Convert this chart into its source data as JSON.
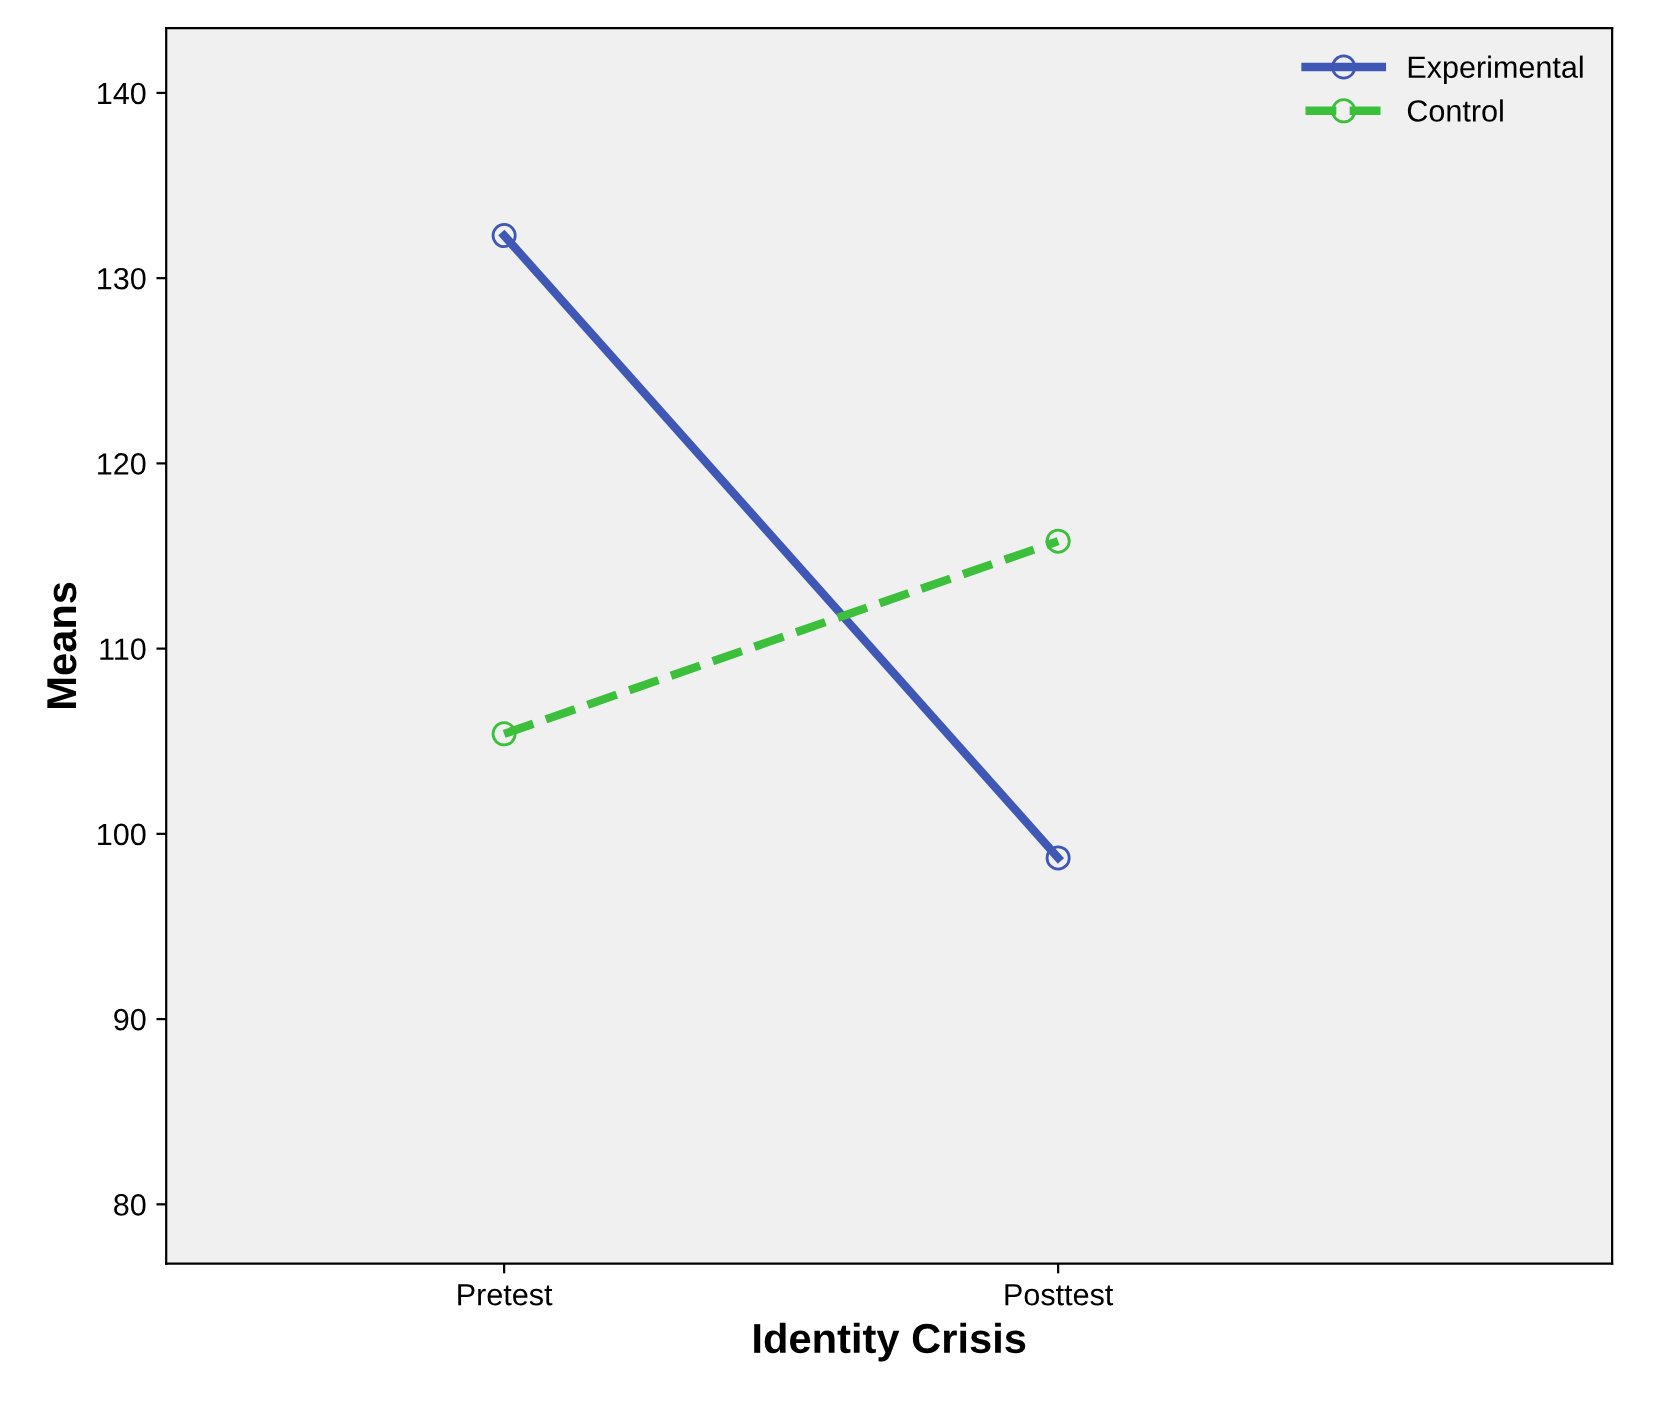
{
  "chart_data": {
    "type": "line",
    "xlabel": "Identity Crisis",
    "ylabel": "Means",
    "categories": [
      "Pretest",
      "Posttest"
    ],
    "series": [
      {
        "name": "Experimental",
        "color": "#3f58b5",
        "values": [
          132.3,
          98.7
        ],
        "line_style": "solid"
      },
      {
        "name": "Control",
        "color": "#3cc03c",
        "values": [
          105.4,
          115.8
        ],
        "line_style": "dashed"
      }
    ],
    "ylim": [
      76.8,
      143.5
    ],
    "yticks": [
      80,
      90,
      100,
      110,
      120,
      130,
      140
    ],
    "marker": "circle",
    "legend": "top right",
    "grid": false
  }
}
